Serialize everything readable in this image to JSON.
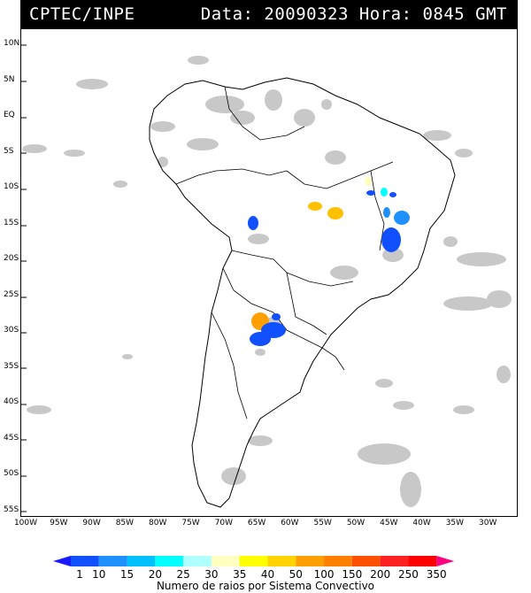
{
  "header": {
    "org": "CPTEC/INPE",
    "info": "Data: 20090323 Hora: 0845 GMT"
  },
  "latitude_labels": [
    "10N",
    "5N",
    "EQ",
    "5S",
    "10S",
    "15S",
    "20S",
    "25S",
    "30S",
    "35S",
    "40S",
    "45S",
    "50S",
    "55S"
  ],
  "longitude_labels": [
    "100W",
    "95W",
    "90W",
    "85W",
    "80W",
    "75W",
    "70W",
    "65W",
    "60W",
    "55W",
    "50W",
    "45W",
    "40W",
    "35W",
    "30W"
  ],
  "colorbar": {
    "title": "Numero de raios por Sistema Convectivo",
    "labels": [
      "1",
      "10",
      "15",
      "20",
      "25",
      "30",
      "35",
      "40",
      "50",
      "100",
      "150",
      "200",
      "250",
      "350"
    ],
    "colors": [
      "#1a1aff",
      "#1050ff",
      "#1e90ff",
      "#00c0ff",
      "#00ffff",
      "#b0ffff",
      "#ffffc0",
      "#ffff00",
      "#ffd200",
      "#ffa000",
      "#ff8000",
      "#ff5000",
      "#ff2020",
      "#ff0000",
      "#ff0080"
    ]
  },
  "colors": {
    "cloud": "#c8c8c8",
    "land_border": "#000000",
    "header_bg": "#000000"
  }
}
